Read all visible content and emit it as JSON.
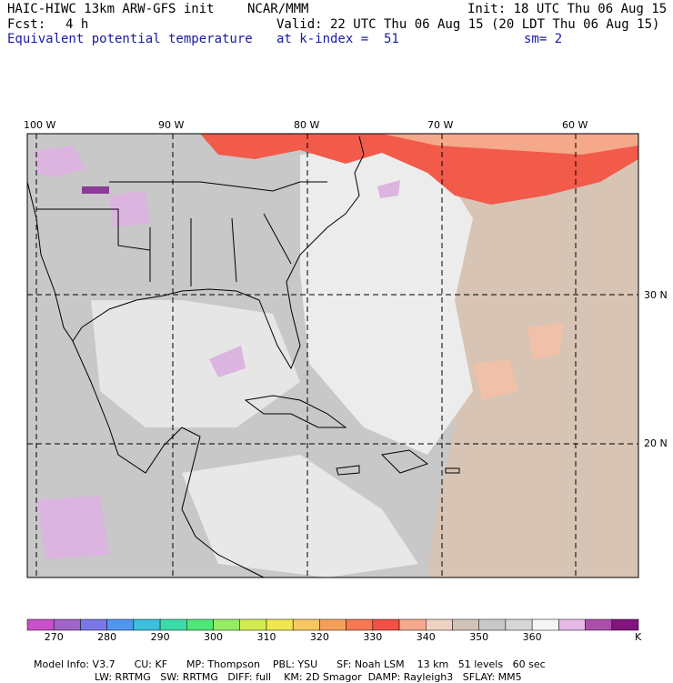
{
  "header": {
    "model": "HAIC-HIWC 13km ARW-GFS init",
    "org": "NCAR/MMM",
    "init": "Init: 18 UTC Thu 06 Aug 15",
    "fcst_label": "Fcst:",
    "fcst_value": "4 h",
    "valid": "Valid: 22 UTC Thu 06 Aug 15 (20 LDT Thu 06 Aug 15)",
    "field": "Equivalent potential temperature",
    "level": "at k-index =  51",
    "smoothing": "sm= 2"
  },
  "map": {
    "lon_labels": [
      "100 W",
      "90 W",
      "80 W",
      "70 W",
      "60 W"
    ],
    "lat_labels": [
      "30 N",
      "20 N"
    ],
    "colors": {
      "land_outline": "#000000",
      "grid": "#000000",
      "warm_red": "#f25a4a",
      "salmon": "#f5a88a",
      "tan": "#ddc3b0",
      "gray": "#c8c8c8",
      "light": "#ececec",
      "lavender": "#dcb4e0",
      "purple": "#8c3c96"
    }
  },
  "colorbar": {
    "colors": [
      "#c850c8",
      "#a064c8",
      "#7878e6",
      "#5096f0",
      "#3cbedc",
      "#3cdcaa",
      "#50e678",
      "#96eb64",
      "#d2eb50",
      "#f0e650",
      "#f5c864",
      "#f5a05a",
      "#f57850",
      "#f05046",
      "#f5a88c",
      "#f0d2c3",
      "#d2c3b9",
      "#c8c8c8",
      "#d7d7d7",
      "#f5f5f5",
      "#e6b9e6",
      "#aa50aa",
      "#82147d"
    ],
    "labels": [
      "270",
      "280",
      "290",
      "300",
      "310",
      "320",
      "330",
      "340",
      "350",
      "360"
    ],
    "unit": "K"
  },
  "footer": {
    "line1": [
      "Model Info: V3.7",
      "CU: KF",
      "MP: Thompson",
      "PBL: YSU",
      "SF: Noah LSM",
      "13 km",
      "51 levels",
      "60 sec"
    ],
    "line2": [
      "LW: RRTMG",
      "SW: RRTMG",
      "DIFF: full",
      "KM: 2D Smagor",
      "DAMP: Rayleigh3",
      "SFLAY: MM5"
    ]
  }
}
